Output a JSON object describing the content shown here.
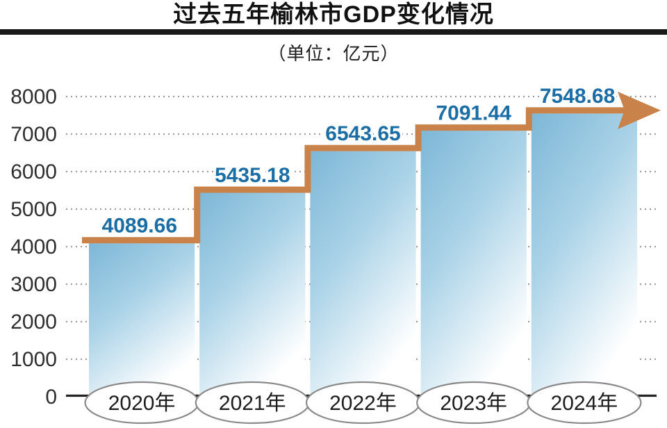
{
  "page": {
    "background": "#ffffff"
  },
  "header": {
    "title": "过去五年榆林市GDP变化情况",
    "subtitle": "（单位：亿元）"
  },
  "chart_data": {
    "type": "bar",
    "title": "过去五年榆林市GDP变化情况",
    "unit": "亿元",
    "categories": [
      "2020年",
      "2021年",
      "2022年",
      "2023年",
      "2024年"
    ],
    "values": [
      4089.66,
      5435.18,
      6543.65,
      7091.44,
      7548.68
    ],
    "value_labels": [
      "4089.66",
      "5435.18",
      "6543.65",
      "7091.44",
      "7548.68"
    ],
    "xlabel": "",
    "ylabel": "",
    "ylim": [
      0,
      8000
    ],
    "ytick_step": 1000,
    "ytick_labels": [
      "0",
      "1000",
      "2000",
      "3000",
      "4000",
      "5000",
      "6000",
      "7000",
      "8000"
    ],
    "grid": {
      "horizontal": true,
      "style": "dotted",
      "color": "#9b9b9b"
    },
    "legend": "none",
    "annotations": {
      "trend": "orange step line tracing bar tops, ending in right-pointing arrowhead"
    },
    "colors": {
      "bar_gradient_start": "#7db7d7",
      "bar_gradient_mid": "#a9d2e7",
      "bar_gradient_end": "#ffffff",
      "step_line": "#c8824a",
      "value_label": "#1b6da6",
      "axis_text": "#2e2e2e",
      "axis_line": "#222222",
      "ellipse_fill": "#ffffff",
      "ellipse_border": "#8a8a8a",
      "year_text": "#1c1c1c",
      "title_text": "#111111",
      "rule": "#1a1a1a"
    }
  }
}
